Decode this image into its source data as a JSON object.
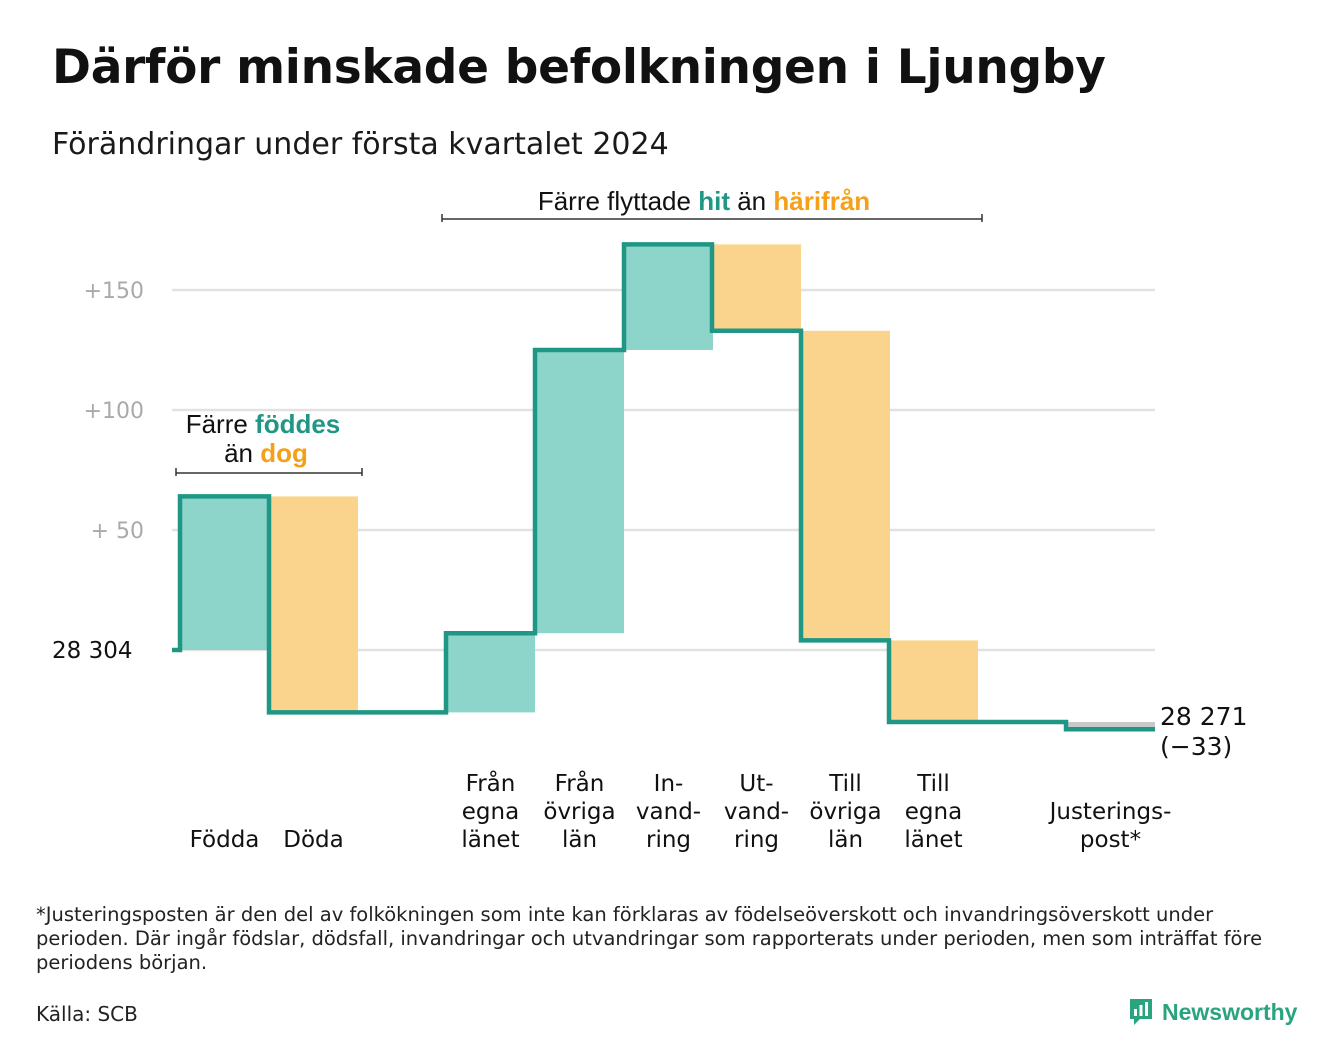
{
  "title": "Därför minskade befolkningen i Ljungby",
  "subtitle": "Förändringar under första kvartalet 2024",
  "chart_data": {
    "type": "waterfall",
    "start_value": 28304,
    "start_label": "28  304",
    "end_value": 28271,
    "end_label": "28 271",
    "end_change_label": "(−33)",
    "y_tick_labels": [
      "+150",
      "+100",
      "+  50"
    ],
    "y_ticks": [
      150,
      100,
      50
    ],
    "ylim": [
      -40,
      170
    ],
    "grid": true,
    "steps": [
      {
        "label_lines": [
          "Födda"
        ],
        "value": 64,
        "kind": "in"
      },
      {
        "label_lines": [
          "Döda"
        ],
        "value": -90,
        "kind": "out"
      },
      {
        "label_lines": [
          "Från",
          "egna",
          "länet"
        ],
        "value": 33,
        "kind": "in"
      },
      {
        "label_lines": [
          "Från",
          "övriga",
          "län"
        ],
        "value": 118,
        "kind": "in"
      },
      {
        "label_lines": [
          "In-",
          "vand-",
          "ring"
        ],
        "value": 44,
        "kind": "in"
      },
      {
        "label_lines": [
          "Ut-",
          "vand-",
          "ring"
        ],
        "value": -36,
        "kind": "out"
      },
      {
        "label_lines": [
          "Till",
          "övriga",
          "län"
        ],
        "value": -129,
        "kind": "out"
      },
      {
        "label_lines": [
          "Till",
          "egna",
          "länet"
        ],
        "value": -34,
        "kind": "out"
      },
      {
        "label_lines": [
          "Justerings-",
          "post*"
        ],
        "value": -3,
        "kind": "adjust"
      }
    ],
    "annotations": [
      {
        "prefix": "Färre",
        "highlight1": "föddes",
        "middle": "än",
        "highlight2": "dog"
      },
      {
        "prefix": "Färre flyttade",
        "highlight1": "hit",
        "middle": "än",
        "highlight2": "härifrån"
      }
    ],
    "colors": {
      "in": "#8dd5cb",
      "out": "#fad48d",
      "adjust": "#c8c8c8",
      "line": "#1f9784",
      "highlight_in": "#1f9784",
      "highlight_out": "#f6a01a",
      "grid": "#e2e2e2",
      "tick": "#aaaaaa"
    }
  },
  "footnote": "*Justeringsposten är den del av folkökningen som inte kan förklaras av födelseöverskott och invandringsöverskott under perioden. Där ingår födslar, dödsfall, invandringar och utvandringar som rapporterats under perioden, men som inträffat före periodens början.",
  "source": "Källa: SCB",
  "brand": {
    "name": "Newsworthy",
    "icon": "newsworthy-logo-icon",
    "color": "#2aa37f"
  }
}
